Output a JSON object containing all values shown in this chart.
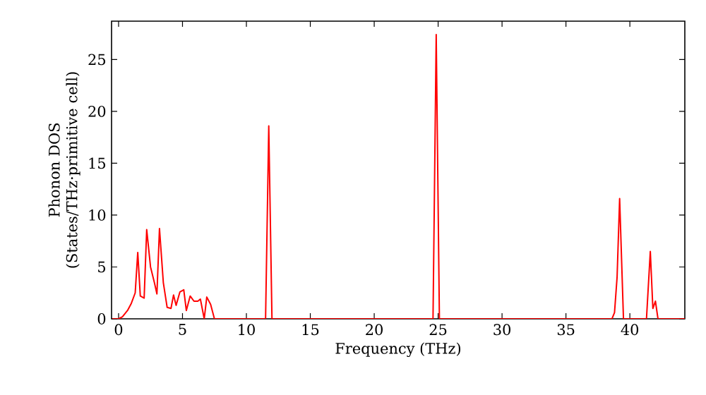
{
  "chart_data": {
    "type": "line",
    "xlabel": "Frequency (THz)",
    "ylabel": "Phonon DOS (States/THz·primitive cell)",
    "xlim": [
      -0.55,
      44.3
    ],
    "ylim": [
      0,
      28.7
    ],
    "xticks": [
      0,
      5,
      10,
      15,
      20,
      25,
      30,
      35,
      40
    ],
    "yticks": [
      0,
      5,
      10,
      15,
      20,
      25
    ],
    "grid": false,
    "marker": "none",
    "line_style": "solid",
    "series": [
      {
        "color": "#ff0000",
        "x": [
          -0.5,
          0,
          0.3,
          0.7,
          1.0,
          1.3,
          1.5,
          1.7,
          2.0,
          2.2,
          2.5,
          2.8,
          3.0,
          3.2,
          3.5,
          3.8,
          4.1,
          4.3,
          4.5,
          4.8,
          5.1,
          5.3,
          5.6,
          5.9,
          6.2,
          6.4,
          6.7,
          6.9,
          7.2,
          7.5,
          11.5,
          11.75,
          12.0,
          24.6,
          24.85,
          25.1,
          38.6,
          38.8,
          39.0,
          39.2,
          39.5,
          41.3,
          41.6,
          41.8,
          42.0,
          42.2,
          44.3
        ],
        "values": [
          0,
          0,
          0.2,
          0.8,
          1.5,
          2.5,
          6.4,
          2.2,
          2.0,
          8.6,
          5,
          3.5,
          2.4,
          8.7,
          3.5,
          1.1,
          1.0,
          2.3,
          1.3,
          2.6,
          2.8,
          0.8,
          2.2,
          1.7,
          1.7,
          1.9,
          0,
          2.1,
          1.4,
          0,
          0,
          18.6,
          0,
          0,
          27.4,
          0,
          0,
          0.6,
          4,
          11.6,
          0,
          0,
          6.5,
          1,
          1.7,
          0,
          0
        ]
      }
    ]
  }
}
